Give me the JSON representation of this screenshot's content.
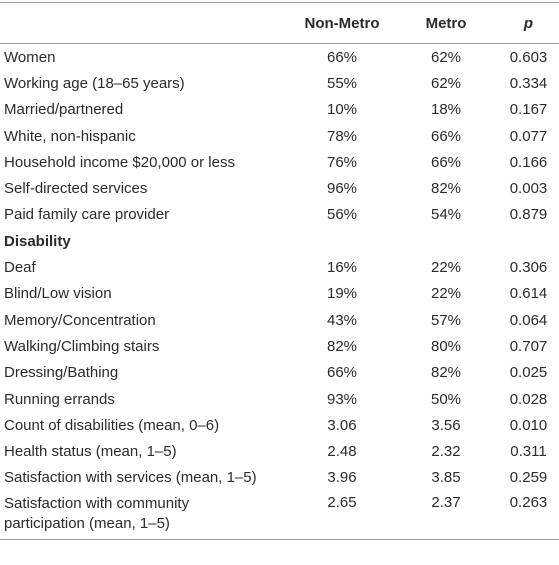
{
  "table": {
    "columns": [
      "Non-Metro",
      "Metro",
      "p"
    ],
    "rows": [
      [
        "Women",
        "66%",
        "62%",
        "0.603"
      ],
      [
        "Working age (18–65 years)",
        "55%",
        "62%",
        "0.334"
      ],
      [
        "Married/partnered",
        "10%",
        "18%",
        "0.167"
      ],
      [
        "White, non-hispanic",
        "78%",
        "66%",
        "0.077"
      ],
      [
        "Household income $20,000 or less",
        "76%",
        "66%",
        "0.166"
      ],
      [
        "Self-directed services",
        "96%",
        "82%",
        "0.003"
      ],
      [
        "Paid family care provider",
        "56%",
        "54%",
        "0.879"
      ],
      [
        "Disability"
      ],
      [
        "Deaf",
        "16%",
        "22%",
        "0.306"
      ],
      [
        "Blind/Low vision",
        "19%",
        "22%",
        "0.614"
      ],
      [
        "Memory/Concentration",
        "43%",
        "57%",
        "0.064"
      ],
      [
        "Walking/Climbing stairs",
        "82%",
        "80%",
        "0.707"
      ],
      [
        "Dressing/Bathing",
        "66%",
        "82%",
        "0.025"
      ],
      [
        "Running errands",
        "93%",
        "50%",
        "0.028"
      ],
      [
        "Count of disabilities (mean, 0–6)",
        "3.06",
        "3.56",
        "0.010"
      ],
      [
        "Health status (mean, 1–5)",
        "2.48",
        "2.32",
        "0.311"
      ],
      [
        "Satisfaction with services (mean, 1–5)",
        "3.96",
        "3.85",
        "0.259"
      ],
      [
        "Satisfaction with community participation (mean, 1–5)",
        "2.65",
        "2.37",
        "0.263"
      ]
    ]
  }
}
